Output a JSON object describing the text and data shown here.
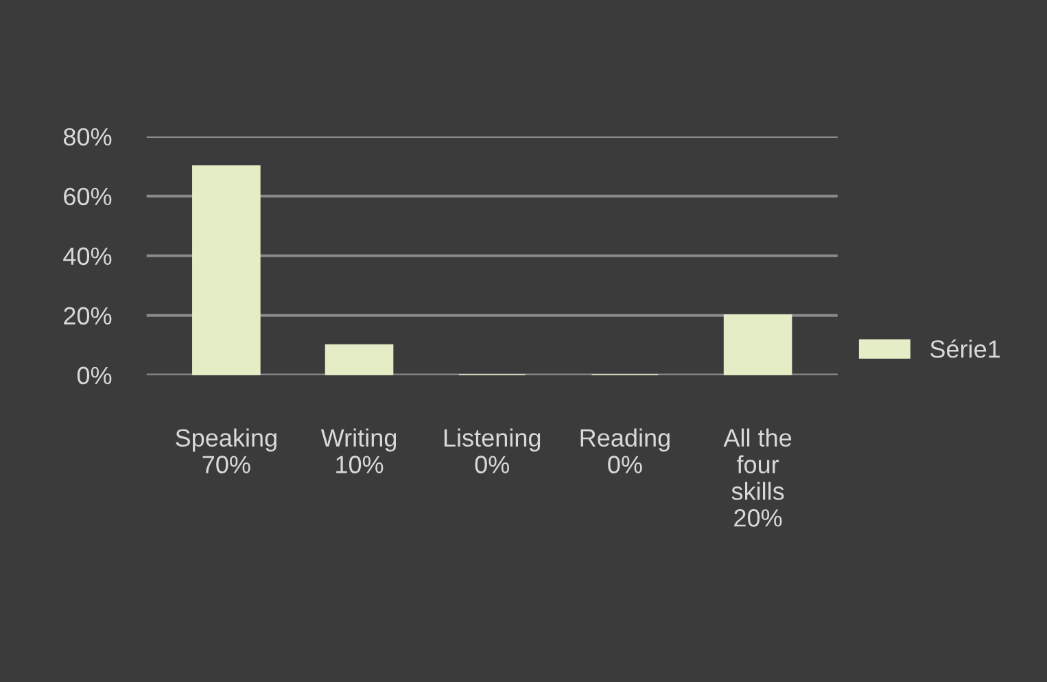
{
  "chart_data": {
    "type": "bar",
    "categories": [
      "Speaking",
      "Writing",
      "Listening",
      "Reading",
      "All the\nfour\nskills"
    ],
    "series": [
      {
        "name": "Série1",
        "color": "#e4edc6",
        "values": [
          70,
          10,
          0,
          0,
          20
        ]
      }
    ],
    "value_labels": [
      "70%",
      "10%",
      "0%",
      "0%",
      "20%"
    ],
    "ylim": [
      0,
      80
    ],
    "yticks": [
      {
        "value": 0,
        "label": "0%"
      },
      {
        "value": 20,
        "label": "20%"
      },
      {
        "value": 40,
        "label": "40%"
      },
      {
        "value": 60,
        "label": "60%"
      },
      {
        "value": 80,
        "label": "80%"
      }
    ],
    "grid": "y",
    "legend": "right"
  }
}
